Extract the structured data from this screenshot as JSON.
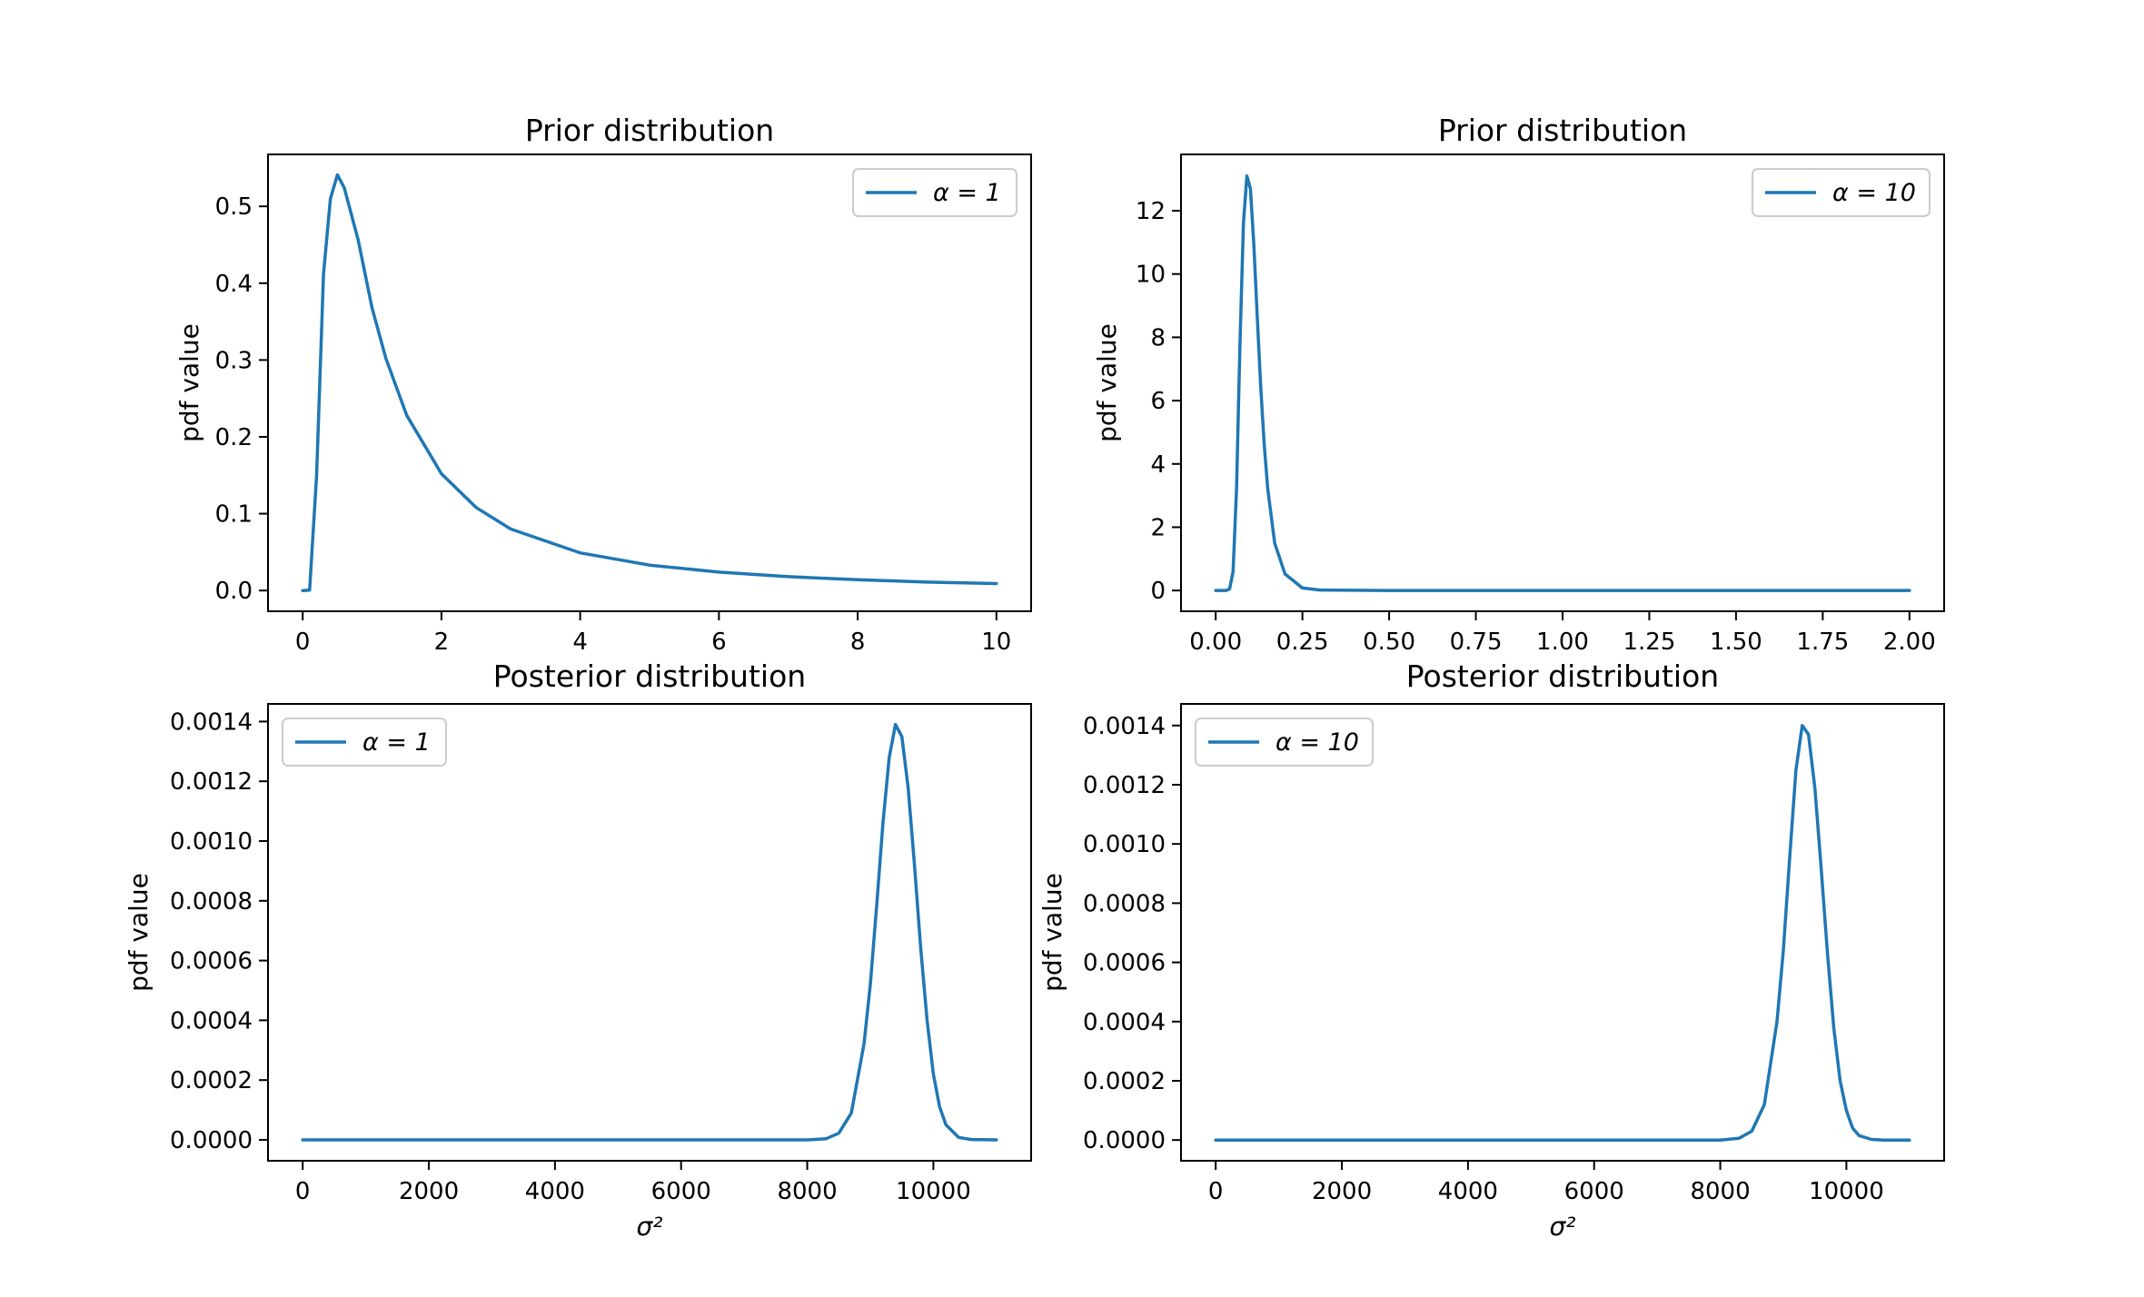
{
  "figure": {
    "background": "#ffffff",
    "line_color": "#1f77b4",
    "axis_color": "#000000",
    "legend_border_color": "#cccccc"
  },
  "chart_data": [
    {
      "id": "prior-alpha-1",
      "type": "line",
      "title": "Prior distribution",
      "xlabel": "",
      "ylabel": "pdf value",
      "xlim": [
        -0.5,
        10.5
      ],
      "ylim": [
        -0.027,
        0.5676
      ],
      "xticks": [
        0,
        2,
        4,
        6,
        8,
        10
      ],
      "xtick_labels": [
        "0",
        "2",
        "4",
        "6",
        "8",
        "10"
      ],
      "yticks": [
        0.0,
        0.1,
        0.2,
        0.3,
        0.4,
        0.5
      ],
      "ytick_labels": [
        "0.0",
        "0.1",
        "0.2",
        "0.3",
        "0.4",
        "0.5"
      ],
      "grid": false,
      "legend_position": "top-right",
      "series": [
        {
          "name": "α = 1",
          "x": [
            0,
            0.1,
            0.2,
            0.3,
            0.4,
            0.5,
            0.6,
            0.8,
            1.0,
            1.2,
            1.5,
            2.0,
            2.5,
            3.0,
            4.0,
            5.0,
            6.0,
            7.0,
            8.0,
            9.0,
            10.0
          ],
          "y": [
            0.0,
            0.0005,
            0.15,
            0.412,
            0.51,
            0.541,
            0.524,
            0.456,
            0.368,
            0.302,
            0.228,
            0.152,
            0.108,
            0.08,
            0.049,
            0.033,
            0.024,
            0.018,
            0.014,
            0.011,
            0.009
          ]
        }
      ]
    },
    {
      "id": "prior-alpha-10",
      "type": "line",
      "title": "Prior distribution",
      "xlabel": "",
      "ylabel": "pdf value",
      "xlim": [
        -0.1,
        2.1
      ],
      "ylim": [
        -0.656,
        13.78
      ],
      "xticks": [
        0.0,
        0.25,
        0.5,
        0.75,
        1.0,
        1.25,
        1.5,
        1.75,
        2.0
      ],
      "xtick_labels": [
        "0.00",
        "0.25",
        "0.50",
        "0.75",
        "1.00",
        "1.25",
        "1.50",
        "1.75",
        "2.00"
      ],
      "yticks": [
        0,
        2,
        4,
        6,
        8,
        10,
        12
      ],
      "ytick_labels": [
        "0",
        "2",
        "4",
        "6",
        "8",
        "10",
        "12"
      ],
      "grid": false,
      "legend_position": "top-right",
      "series": [
        {
          "name": "α = 10",
          "x": [
            0,
            0.03,
            0.04,
            0.05,
            0.06,
            0.07,
            0.08,
            0.09,
            0.1,
            0.11,
            0.12,
            0.13,
            0.14,
            0.15,
            0.17,
            0.2,
            0.25,
            0.3,
            0.5,
            1.0,
            1.5,
            2.0
          ],
          "y": [
            0.0,
            0.0,
            0.05,
            0.6,
            3.2,
            7.8,
            11.6,
            13.1,
            12.7,
            10.9,
            8.6,
            6.4,
            4.6,
            3.2,
            1.5,
            0.52,
            0.08,
            0.015,
            0.0,
            0.0,
            0.0,
            0.0
          ]
        }
      ]
    },
    {
      "id": "posterior-alpha-1",
      "type": "line",
      "title": "Posterior distribution",
      "xlabel": "σ²",
      "ylabel": "pdf value",
      "xlim": [
        -550,
        11550
      ],
      "ylim": [
        -7e-05,
        0.001459
      ],
      "xticks": [
        0,
        2000,
        4000,
        6000,
        8000,
        10000
      ],
      "xtick_labels": [
        "0",
        "2000",
        "4000",
        "6000",
        "8000",
        "10000"
      ],
      "yticks": [
        0.0,
        0.0002,
        0.0004,
        0.0006,
        0.0008,
        0.001,
        0.0012,
        0.0014
      ],
      "ytick_labels": [
        "0.0000",
        "0.0002",
        "0.0004",
        "0.0006",
        "0.0008",
        "0.0010",
        "0.0012",
        "0.0014"
      ],
      "grid": false,
      "legend_position": "top-left",
      "series": [
        {
          "name": "α = 1",
          "x": [
            0,
            7000,
            8000,
            8300,
            8500,
            8700,
            8900,
            9000,
            9100,
            9200,
            9300,
            9400,
            9500,
            9600,
            9700,
            9800,
            9900,
            10000,
            10100,
            10200,
            10400,
            10600,
            11000
          ],
          "y": [
            0.0,
            0.0,
            0.0,
            4e-06,
            2.2e-05,
            9e-05,
            0.00032,
            0.00052,
            0.00078,
            0.00106,
            0.00128,
            0.00139,
            0.00135,
            0.00118,
            0.00092,
            0.00064,
            0.0004,
            0.00022,
            0.00011,
            5e-05,
            8e-06,
            1e-06,
            0.0
          ]
        }
      ]
    },
    {
      "id": "posterior-alpha-10",
      "type": "line",
      "title": "Posterior distribution",
      "xlabel": "σ²",
      "ylabel": "pdf value",
      "xlim": [
        -550,
        11550
      ],
      "ylim": [
        -7e-05,
        0.001473
      ],
      "xticks": [
        0,
        2000,
        4000,
        6000,
        8000,
        10000
      ],
      "xtick_labels": [
        "0",
        "2000",
        "4000",
        "6000",
        "8000",
        "10000"
      ],
      "yticks": [
        0.0,
        0.0002,
        0.0004,
        0.0006,
        0.0008,
        0.001,
        0.0012,
        0.0014
      ],
      "ytick_labels": [
        "0.0000",
        "0.0002",
        "0.0004",
        "0.0006",
        "0.0008",
        "0.0010",
        "0.0012",
        "0.0014"
      ],
      "grid": false,
      "legend_position": "top-left",
      "series": [
        {
          "name": "α = 10",
          "x": [
            0,
            7000,
            8000,
            8300,
            8500,
            8700,
            8900,
            9000,
            9100,
            9200,
            9300,
            9400,
            9500,
            9600,
            9700,
            9800,
            9900,
            10000,
            10100,
            10200,
            10400,
            10600,
            11000
          ],
          "y": [
            0.0,
            0.0,
            0.0,
            6e-06,
            3e-05,
            0.00012,
            0.0004,
            0.00064,
            0.00095,
            0.00125,
            0.0014,
            0.00137,
            0.00119,
            0.00092,
            0.00063,
            0.00038,
            0.0002,
            0.0001,
            4e-05,
            1.5e-05,
            2e-06,
            0.0,
            0.0
          ]
        }
      ]
    }
  ]
}
